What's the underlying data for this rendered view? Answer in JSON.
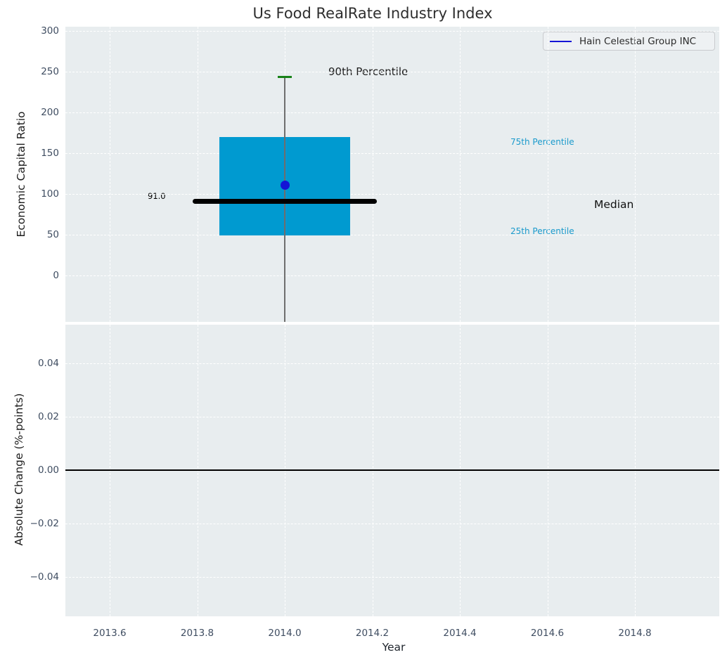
{
  "title": "Us Food RealRate Industry Index",
  "colors": {
    "plot_background": "#e8edef",
    "grid": "#ffffff",
    "tick_text": "#3f4d61",
    "percentile_text": "#1a9acc",
    "box_fill": "#009ad0",
    "company_blue": "#1414d6",
    "cap_green": "#188218",
    "median_black": "#000000"
  },
  "chart_data": [
    {
      "type": "boxplot",
      "title": "Us Food RealRate Industry Index",
      "ylabel": "Economic Capital Ratio",
      "xlabel": "Year",
      "grid": true,
      "xlim": [
        2013.5,
        2015.0
      ],
      "ylim": [
        -57,
        305
      ],
      "x_ticks": [
        2013.6,
        2013.8,
        2014.0,
        2014.2,
        2014.4,
        2014.6,
        2014.8
      ],
      "x_tick_labels": [
        "2013.6",
        "2013.8",
        "2014.0",
        "2014.2",
        "2014.4",
        "2014.6",
        "2014.8"
      ],
      "y_ticks": [
        0,
        50,
        100,
        150,
        200,
        250,
        300
      ],
      "y_tick_labels": [
        "0",
        "50",
        "100",
        "150",
        "200",
        "250",
        "300"
      ],
      "box": {
        "x": 2014.0,
        "q1": 49,
        "median": 91.0,
        "q3": 170,
        "p90": 243,
        "p10_below_axis": true,
        "box_width_years": 0.3,
        "median_line_width_years": 0.42,
        "box_color": "#009ad0",
        "median_color": "#000000",
        "cap_color": "#188218",
        "whisker_color": "#6e6e6e",
        "median_label": "91.0"
      },
      "company_point": {
        "name": "Hain Celestial Group INC",
        "x": 2014.0,
        "y": 111,
        "color": "#1414d6"
      },
      "annotations": [
        {
          "text": "90th Percentile",
          "color": "#1c1c1c"
        },
        {
          "text": "75th Percentile",
          "color": "#1a9acc"
        },
        {
          "text": "Median",
          "color": "#111111"
        },
        {
          "text": "25th Percentile",
          "color": "#1a9acc"
        },
        {
          "text": "91.0",
          "color": "#000000"
        }
      ],
      "legend": {
        "label": "Hain Celestial Group INC",
        "line_color": "#1414d6",
        "position": "upper right"
      }
    },
    {
      "type": "line",
      "ylabel": "Absolute Change (%-points)",
      "xlabel": "Year",
      "grid": true,
      "xlim": [
        2013.5,
        2015.0
      ],
      "ylim": [
        -0.055,
        0.0546
      ],
      "y_ticks": [
        0.04,
        0.02,
        0.0,
        -0.02,
        -0.04
      ],
      "y_tick_labels": [
        "0.04",
        "0.02",
        "0.00",
        "−0.02",
        "−0.04"
      ],
      "zero_line": 0.0,
      "series": []
    }
  ]
}
